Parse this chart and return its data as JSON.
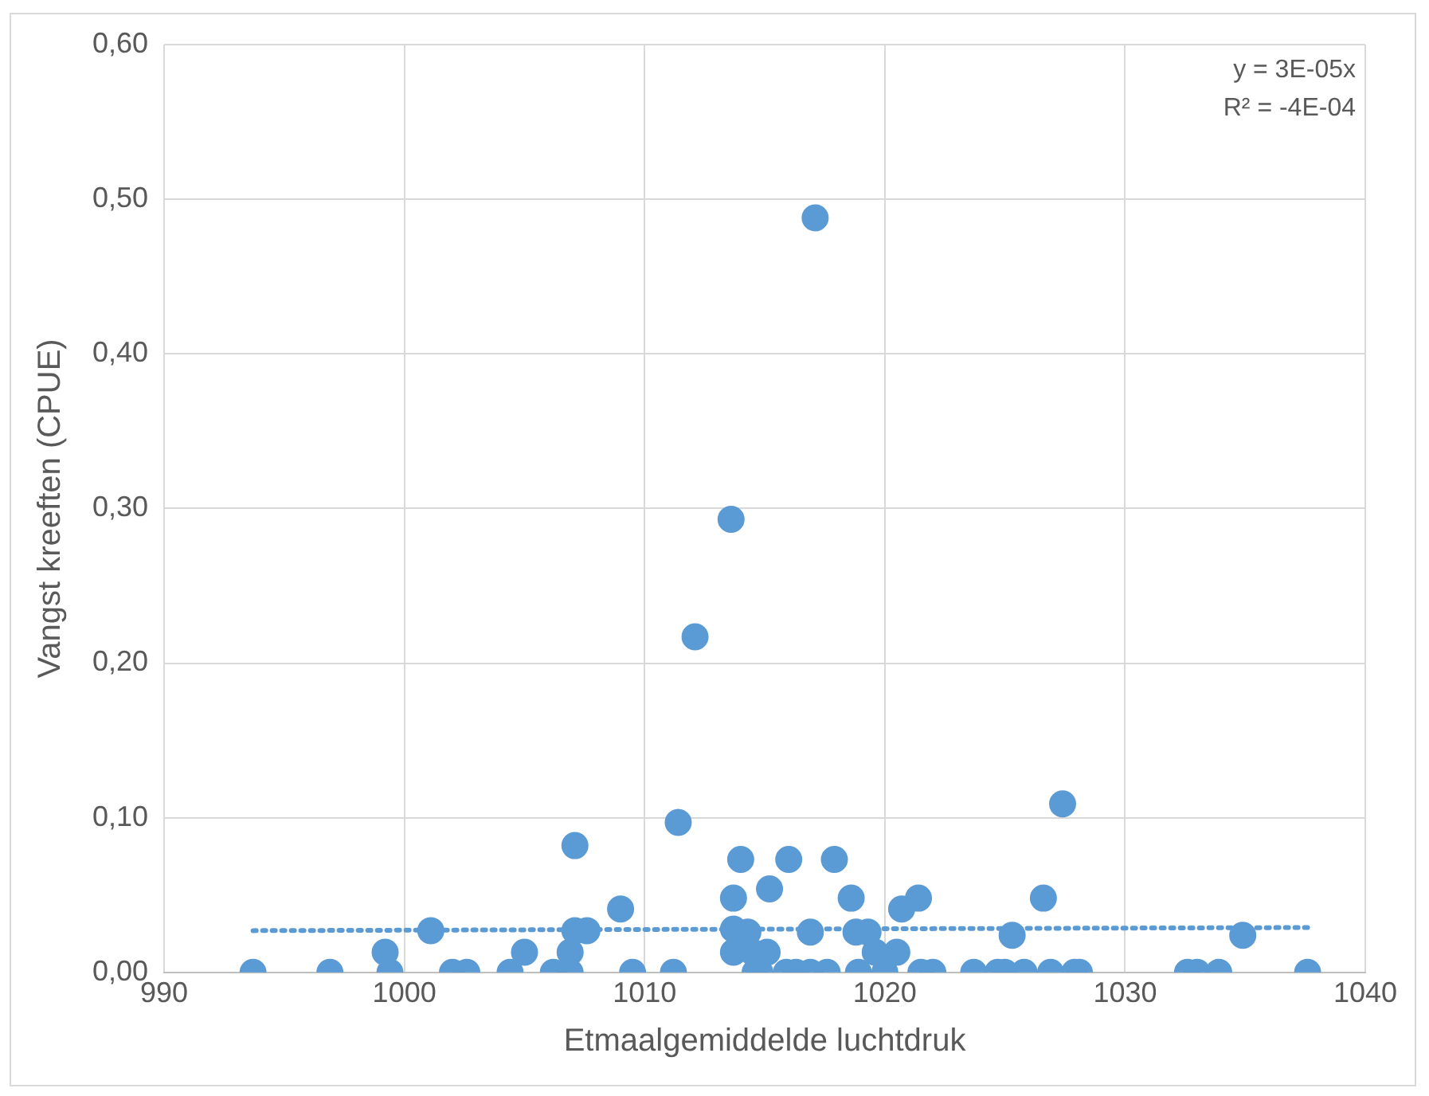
{
  "chart_data": {
    "type": "scatter",
    "xlabel": "Etmaalgemiddelde luchtdruk",
    "ylabel": "Vangst kreeften (CPUE)",
    "annotations": [
      "y = 3E-05x",
      "R² = -4E-04"
    ],
    "xlim": [
      990,
      1040
    ],
    "xticks": [
      990,
      1000,
      1010,
      1020,
      1030,
      1040
    ],
    "ylim": [
      0,
      0.6
    ],
    "yticks": [
      {
        "value": 0,
        "label": "0,00"
      },
      {
        "value": 0.1,
        "label": "0,10"
      },
      {
        "value": 0.2,
        "label": "0,20"
      },
      {
        "value": 0.3,
        "label": "0,30"
      },
      {
        "value": 0.4,
        "label": "0,40"
      },
      {
        "value": 0.5,
        "label": "0,50"
      },
      {
        "value": 0.6,
        "label": "0,60"
      }
    ],
    "grid": true,
    "legend": false,
    "marker": "circle",
    "series": [
      {
        "color": "#5b9bd5",
        "x": [
          993.7,
          996.9,
          999.2,
          999.4,
          1001.1,
          1002.0,
          1002.6,
          1004.4,
          1005.0,
          1006.2,
          1006.9,
          1006.9,
          1007.1,
          1007.1,
          1007.6,
          1009.0,
          1009.5,
          1011.2,
          1011.4,
          1012.1,
          1013.6,
          1013.7,
          1013.7,
          1013.7,
          1014.0,
          1014.3,
          1014.5,
          1014.6,
          1014.8,
          1015.2,
          1015.1,
          1015.9,
          1016.0,
          1016.3,
          1017.1,
          1016.9,
          1016.9,
          1017.6,
          1017.9,
          1018.6,
          1018.8,
          1018.9,
          1019.3,
          1019.6,
          1020.0,
          1020.5,
          1020.7,
          1021.4,
          1021.5,
          1022.0,
          1023.7,
          1024.7,
          1025.0,
          1025.3,
          1025.8,
          1026.9,
          1026.6,
          1027.4,
          1027.9,
          1028.1,
          1032.6,
          1033.0,
          1033.9,
          1034.9,
          1037.6
        ],
        "values": [
          0,
          0,
          0.013,
          0,
          0.027,
          0,
          0,
          0,
          0.013,
          0,
          0.013,
          0,
          0.027,
          0.082,
          0.027,
          0.041,
          0,
          0,
          0.097,
          0.217,
          0.293,
          0.028,
          0.048,
          0.013,
          0.073,
          0.026,
          0.013,
          0,
          0,
          0.054,
          0.013,
          0,
          0.073,
          0,
          0.488,
          0.026,
          0,
          0,
          0.073,
          0.048,
          0.026,
          0,
          0.026,
          0.013,
          0,
          0.013,
          0.041,
          0.048,
          0,
          0,
          0,
          0,
          0,
          0.024,
          0,
          0,
          0.048,
          0.109,
          0,
          0,
          0,
          0,
          0,
          0.024,
          0
        ]
      },
      {
        "type": "line",
        "color": "#5b9bd5",
        "line_style": "dotted",
        "marker": "none",
        "x": [
          993.7,
          1037.6
        ],
        "values": [
          0.027,
          0.029
        ]
      }
    ]
  }
}
